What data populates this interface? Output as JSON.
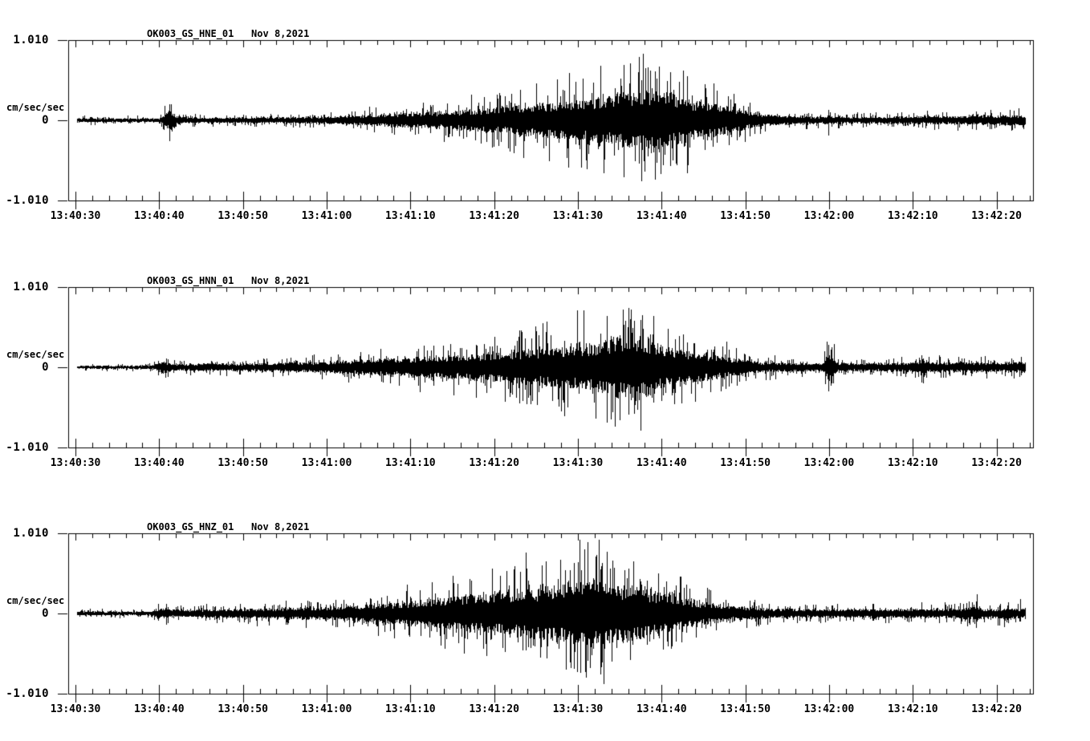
{
  "page": {
    "background": "#ffffff",
    "ink": "#000000"
  },
  "chart_data": {
    "type": "seismogram-multi",
    "kind": "strong-motion acceleration waveform, black trace on white",
    "date_label": "Nov 8,2021",
    "y_unit": "cm/sec/sec",
    "ylim": [
      -1.01,
      1.01
    ],
    "y_tick_labels": [
      "1.010",
      "0",
      "-1.010"
    ],
    "x_start_time": "13:40:30",
    "x_end_time_approx": "13:42:23",
    "seconds_per_major_tick": 10,
    "seconds_per_minor_tick": 2,
    "x_ticks": [
      "13:40:30",
      "13:40:40",
      "13:40:50",
      "13:41:00",
      "13:41:10",
      "13:41:20",
      "13:41:30",
      "13:41:40",
      "13:41:50",
      "13:42:00",
      "13:42:10",
      "13:42:20"
    ],
    "grid": "none, boxed axes with inward minor ticks",
    "legend": "none",
    "random_seed": 20211108,
    "charts": [
      {
        "id": "HNE",
        "title": "OK003_GS_HNE_01   Nov 8,2021",
        "station": "OK003_GS_HNE_01",
        "envelope": [
          [
            0,
            0.03
          ],
          [
            10,
            0.03
          ],
          [
            10.8,
            0.1
          ],
          [
            11.3,
            0.18
          ],
          [
            12,
            0.06
          ],
          [
            14,
            0.04
          ],
          [
            20,
            0.04
          ],
          [
            26,
            0.045
          ],
          [
            30,
            0.055
          ],
          [
            34,
            0.07
          ],
          [
            38,
            0.1
          ],
          [
            42,
            0.12
          ],
          [
            45,
            0.14
          ],
          [
            48,
            0.17
          ],
          [
            51,
            0.2
          ],
          [
            54,
            0.24
          ],
          [
            57,
            0.27
          ],
          [
            60,
            0.3
          ],
          [
            62,
            0.34
          ],
          [
            64,
            0.38
          ],
          [
            65,
            0.42
          ],
          [
            66,
            0.45
          ],
          [
            67,
            0.42
          ],
          [
            68,
            0.46
          ],
          [
            69,
            0.48
          ],
          [
            70,
            0.44
          ],
          [
            71,
            0.4
          ],
          [
            72,
            0.36
          ],
          [
            73,
            0.33
          ],
          [
            74,
            0.3
          ],
          [
            75,
            0.28
          ],
          [
            76,
            0.25
          ],
          [
            77,
            0.23
          ],
          [
            78,
            0.2
          ],
          [
            79,
            0.17
          ],
          [
            80,
            0.14
          ],
          [
            81,
            0.12
          ],
          [
            82,
            0.1
          ],
          [
            83,
            0.08
          ],
          [
            84,
            0.07
          ],
          [
            86,
            0.06
          ],
          [
            88,
            0.055
          ],
          [
            90,
            0.06
          ],
          [
            92,
            0.05
          ],
          [
            95,
            0.05
          ],
          [
            98,
            0.055
          ],
          [
            101,
            0.06
          ],
          [
            104,
            0.06
          ],
          [
            107,
            0.065
          ],
          [
            110,
            0.07
          ],
          [
            113.5,
            0.075
          ]
        ],
        "spikes": [
          {
            "t": 11.2,
            "up": 0.2,
            "dn": 0.26
          },
          {
            "t": 65.5,
            "up": 0.7,
            "dn": 0.72
          },
          {
            "t": 67.3,
            "up": 0.8,
            "dn": 0.55
          },
          {
            "t": 69.2,
            "up": 0.62,
            "dn": 0.75
          },
          {
            "t": 89.9,
            "up": 0.13,
            "dn": 0.19
          }
        ]
      },
      {
        "id": "HNN",
        "title": "OK003_GS_HNN_01   Nov 8,2021",
        "station": "OK003_GS_HNN_01",
        "envelope": [
          [
            0,
            0.025
          ],
          [
            9,
            0.025
          ],
          [
            10.5,
            0.09
          ],
          [
            11.5,
            0.05
          ],
          [
            14,
            0.05
          ],
          [
            16,
            0.06
          ],
          [
            18,
            0.055
          ],
          [
            22,
            0.06
          ],
          [
            26,
            0.07
          ],
          [
            30,
            0.08
          ],
          [
            33,
            0.1
          ],
          [
            36,
            0.12
          ],
          [
            39,
            0.14
          ],
          [
            41,
            0.16
          ],
          [
            43,
            0.15
          ],
          [
            45,
            0.17
          ],
          [
            47,
            0.19
          ],
          [
            49,
            0.21
          ],
          [
            51,
            0.23
          ],
          [
            53,
            0.25
          ],
          [
            55,
            0.27
          ],
          [
            57,
            0.29
          ],
          [
            59,
            0.31
          ],
          [
            61,
            0.35
          ],
          [
            63,
            0.4
          ],
          [
            64,
            0.44
          ],
          [
            65,
            0.47
          ],
          [
            66,
            0.44
          ],
          [
            67,
            0.48
          ],
          [
            68,
            0.43
          ],
          [
            69,
            0.38
          ],
          [
            70,
            0.34
          ],
          [
            71,
            0.3
          ],
          [
            72,
            0.27
          ],
          [
            73,
            0.25
          ],
          [
            74,
            0.23
          ],
          [
            75,
            0.21
          ],
          [
            76,
            0.19
          ],
          [
            77,
            0.17
          ],
          [
            78,
            0.15
          ],
          [
            79,
            0.13
          ],
          [
            80,
            0.11
          ],
          [
            81,
            0.09
          ],
          [
            82,
            0.08
          ],
          [
            84,
            0.07
          ],
          [
            86,
            0.065
          ],
          [
            88,
            0.06
          ],
          [
            89.3,
            0.07
          ],
          [
            89.8,
            0.22
          ],
          [
            90.3,
            0.26
          ],
          [
            90.8,
            0.08
          ],
          [
            93,
            0.06
          ],
          [
            96,
            0.06
          ],
          [
            99,
            0.065
          ],
          [
            100.5,
            0.09
          ],
          [
            101.3,
            0.14
          ],
          [
            102,
            0.08
          ],
          [
            104,
            0.07
          ],
          [
            106,
            0.075
          ],
          [
            108,
            0.08
          ],
          [
            110,
            0.075
          ],
          [
            113.5,
            0.075
          ]
        ],
        "spikes": [
          {
            "t": 11.0,
            "up": 0.1,
            "dn": 0.12
          },
          {
            "t": 63.5,
            "up": 0.65,
            "dn": 0.7
          },
          {
            "t": 66.0,
            "up": 0.75,
            "dn": 0.6
          },
          {
            "t": 67.5,
            "up": 0.6,
            "dn": 0.72
          },
          {
            "t": 89.9,
            "up": 0.28,
            "dn": 0.3
          },
          {
            "t": 90.3,
            "up": 0.25,
            "dn": 0.2
          },
          {
            "t": 101.0,
            "up": 0.15,
            "dn": 0.12
          }
        ]
      },
      {
        "id": "HNZ",
        "title": "OK003_GS_HNZ_01   Nov 8,2021",
        "station": "OK003_GS_HNZ_01",
        "envelope": [
          [
            0,
            0.03
          ],
          [
            9,
            0.03
          ],
          [
            10.5,
            0.09
          ],
          [
            11.2,
            0.06
          ],
          [
            13,
            0.05
          ],
          [
            16,
            0.06
          ],
          [
            20,
            0.07
          ],
          [
            24,
            0.08
          ],
          [
            28,
            0.09
          ],
          [
            31,
            0.1
          ],
          [
            34,
            0.12
          ],
          [
            37,
            0.15
          ],
          [
            39,
            0.17
          ],
          [
            41,
            0.2
          ],
          [
            43,
            0.22
          ],
          [
            45,
            0.25
          ],
          [
            47,
            0.28
          ],
          [
            49,
            0.3
          ],
          [
            51,
            0.33
          ],
          [
            53,
            0.36
          ],
          [
            55,
            0.38
          ],
          [
            57,
            0.42
          ],
          [
            58,
            0.45
          ],
          [
            59,
            0.43
          ],
          [
            60,
            0.47
          ],
          [
            61,
            0.53
          ],
          [
            61.5,
            0.48
          ],
          [
            62,
            0.45
          ],
          [
            63,
            0.47
          ],
          [
            64,
            0.44
          ],
          [
            65,
            0.42
          ],
          [
            66,
            0.44
          ],
          [
            67,
            0.4
          ],
          [
            68,
            0.37
          ],
          [
            69,
            0.33
          ],
          [
            70,
            0.3
          ],
          [
            71,
            0.27
          ],
          [
            72,
            0.24
          ],
          [
            73,
            0.21
          ],
          [
            74,
            0.19
          ],
          [
            75,
            0.17
          ],
          [
            76,
            0.15
          ],
          [
            77,
            0.13
          ],
          [
            78,
            0.11
          ],
          [
            79,
            0.1
          ],
          [
            80,
            0.09
          ],
          [
            82,
            0.08
          ],
          [
            84,
            0.07
          ],
          [
            86,
            0.065
          ],
          [
            88,
            0.06
          ],
          [
            90,
            0.065
          ],
          [
            92,
            0.06
          ],
          [
            94,
            0.065
          ],
          [
            96,
            0.06
          ],
          [
            98,
            0.065
          ],
          [
            100,
            0.07
          ],
          [
            102,
            0.065
          ],
          [
            104,
            0.07
          ],
          [
            106,
            0.075
          ],
          [
            107.5,
            0.12
          ],
          [
            108.2,
            0.07
          ],
          [
            110,
            0.07
          ],
          [
            111.5,
            0.09
          ],
          [
            112.5,
            0.08
          ],
          [
            113.5,
            0.08
          ]
        ],
        "spikes": [
          {
            "t": 10.8,
            "up": 0.12,
            "dn": 0.14
          },
          {
            "t": 59.0,
            "up": 0.55,
            "dn": 0.62
          },
          {
            "t": 61.2,
            "up": 0.9,
            "dn": 0.6
          },
          {
            "t": 62.8,
            "up": 0.6,
            "dn": 0.68
          },
          {
            "t": 107.6,
            "up": 0.24,
            "dn": 0.1
          },
          {
            "t": 112.8,
            "up": 0.18,
            "dn": 0.1
          }
        ]
      }
    ]
  }
}
